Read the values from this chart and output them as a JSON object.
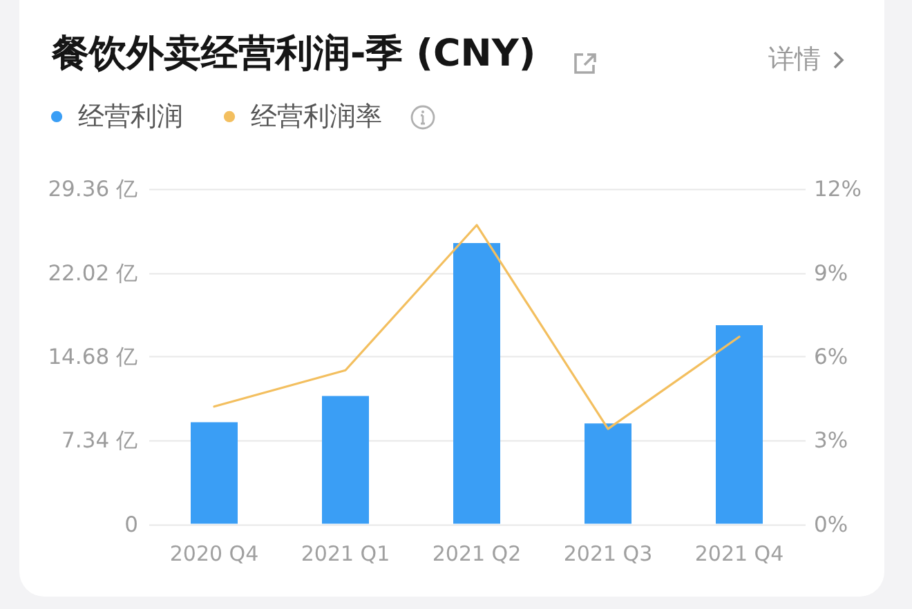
{
  "chart_data": {
    "type": "bar",
    "title": "餐饮外卖经营利润-季 (CNY)",
    "annotations": [
      "详情"
    ],
    "categories": [
      "2020 Q4",
      "2021 Q1",
      "2021 Q2",
      "2021 Q3",
      "2021 Q4"
    ],
    "series": [
      {
        "name": "经营利润",
        "color": "#3a9ef5",
        "values": [
          8.9,
          11.2,
          24.6,
          8.8,
          17.4
        ]
      },
      {
        "name": "经营利润率",
        "type": "line",
        "axis": "y2",
        "color": "#f3bf5f",
        "values": [
          4.2,
          5.5,
          10.7,
          3.4,
          6.7
        ]
      }
    ],
    "ylim": [
      0,
      29.36
    ],
    "yticks": [
      0,
      {
        "value": 7.34,
        "label": "7.34 亿"
      },
      {
        "value": 14.68,
        "label": "14.68 亿"
      },
      {
        "value": 22.02,
        "label": "22.02 亿"
      },
      {
        "value": 29.36,
        "label": "29.36 亿"
      }
    ],
    "y2lim": [
      0,
      12
    ],
    "y2ticks": [
      {
        "value": 0,
        "label": "0%"
      },
      {
        "value": 3,
        "label": "3%"
      },
      {
        "value": 6,
        "label": "6%"
      },
      {
        "value": 9,
        "label": "9%"
      },
      {
        "value": 12,
        "label": "12%"
      }
    ],
    "grid": "y",
    "legend": "top left",
    "marker": "none"
  }
}
